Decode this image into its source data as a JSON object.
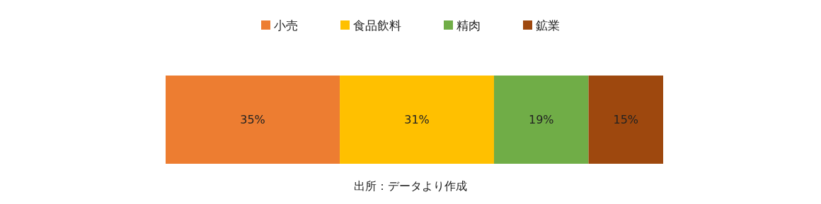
{
  "chart_data": {
    "type": "bar",
    "orientation": "horizontal",
    "stacked": true,
    "categories": [
      null
    ],
    "legend": "top",
    "tick_labels": false,
    "grid": false,
    "series": [
      {
        "name": "小売",
        "color": "#ed7d31",
        "values": [
          35
        ],
        "value_labels": [
          "35%"
        ]
      },
      {
        "name": "食品飲料",
        "color": "#ffc000",
        "values": [
          31
        ],
        "value_labels": [
          "31%"
        ]
      },
      {
        "name": "精肉",
        "color": "#70ad47",
        "values": [
          19
        ],
        "value_labels": [
          "19%"
        ]
      },
      {
        "name": "鉱業",
        "color": "#9e480e",
        "values": [
          15
        ],
        "value_labels": [
          "15%"
        ]
      }
    ],
    "annotations": [
      "出所：データより作成"
    ]
  }
}
